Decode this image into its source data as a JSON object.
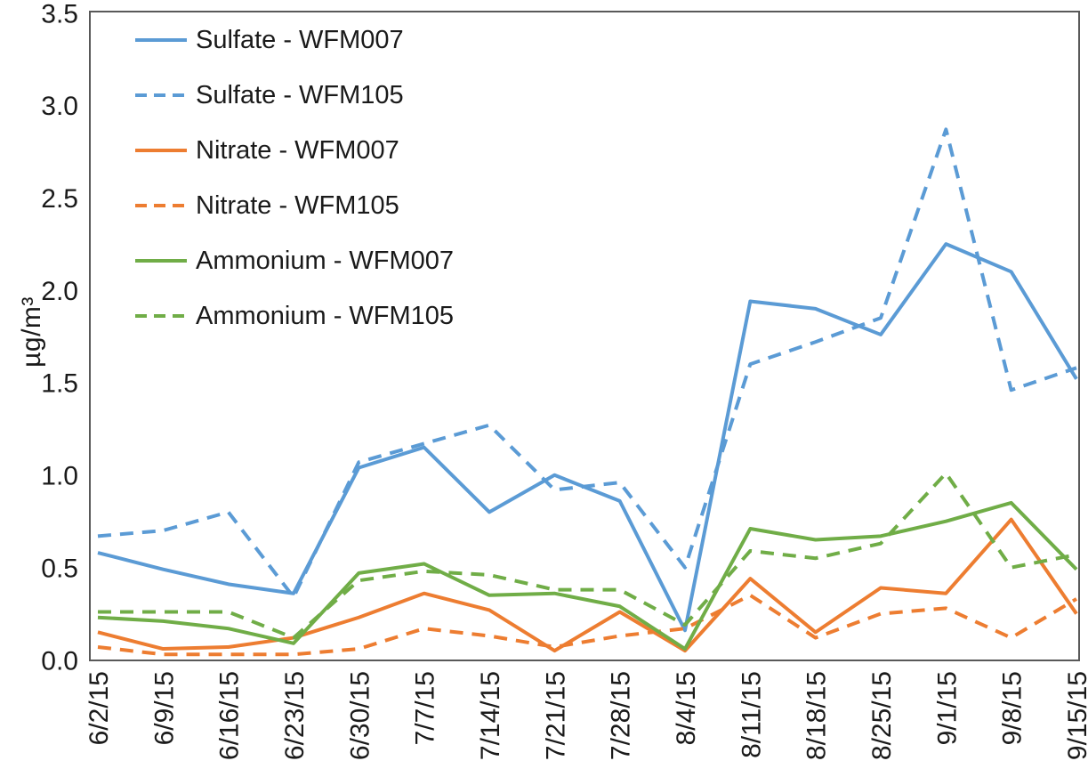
{
  "chart_data": {
    "type": "line",
    "title": "",
    "xlabel": "",
    "ylabel": "µg/m³",
    "ylim": [
      0,
      3.5
    ],
    "ytick_step": 0.5,
    "ytick_labels": [
      "0.0",
      "0.5",
      "1.0",
      "1.5",
      "2.0",
      "2.5",
      "3.0",
      "3.5"
    ],
    "grid": false,
    "legend_position": "top-left-inside",
    "x_tick_rotation_degrees": 90,
    "categories": [
      "6/2/15",
      "6/9/15",
      "6/16/15",
      "6/23/15",
      "6/30/15",
      "7/7/15",
      "7/14/15",
      "7/21/15",
      "7/28/15",
      "8/4/15",
      "8/11/15",
      "8/18/15",
      "8/25/15",
      "9/1/15",
      "9/8/15",
      "9/15/15"
    ],
    "series": [
      {
        "name": "Sulfate - WFM007",
        "color": "#5B9BD5",
        "style": "solid",
        "values": [
          0.58,
          0.49,
          0.41,
          0.36,
          1.04,
          1.15,
          0.8,
          1.0,
          0.86,
          0.16,
          1.94,
          1.9,
          1.76,
          2.25,
          2.1,
          1.52
        ]
      },
      {
        "name": "Sulfate - WFM105",
        "color": "#5B9BD5",
        "style": "dashed",
        "values": [
          0.67,
          0.7,
          0.8,
          0.34,
          1.07,
          1.17,
          1.27,
          0.92,
          0.96,
          0.5,
          1.6,
          1.72,
          1.85,
          2.87,
          1.46,
          1.58
        ]
      },
      {
        "name": "Nitrate - WFM007",
        "color": "#ED7D31",
        "style": "solid",
        "values": [
          0.15,
          0.06,
          0.07,
          0.12,
          0.23,
          0.36,
          0.27,
          0.05,
          0.26,
          0.05,
          0.44,
          0.15,
          0.39,
          0.36,
          0.76,
          0.25
        ]
      },
      {
        "name": "Nitrate - WFM105",
        "color": "#ED7D31",
        "style": "dashed",
        "values": [
          0.07,
          0.03,
          0.03,
          0.03,
          0.06,
          0.17,
          0.13,
          0.07,
          0.13,
          0.17,
          0.35,
          0.12,
          0.25,
          0.28,
          0.12,
          0.33
        ]
      },
      {
        "name": "Ammonium - WFM007",
        "color": "#70AD47",
        "style": "solid",
        "values": [
          0.23,
          0.21,
          0.17,
          0.09,
          0.47,
          0.52,
          0.35,
          0.36,
          0.29,
          0.06,
          0.71,
          0.65,
          0.67,
          0.75,
          0.85,
          0.49
        ]
      },
      {
        "name": "Ammonium - WFM105",
        "color": "#70AD47",
        "style": "dashed",
        "values": [
          0.26,
          0.26,
          0.26,
          0.12,
          0.43,
          0.48,
          0.46,
          0.38,
          0.38,
          0.19,
          0.59,
          0.55,
          0.63,
          1.01,
          0.5,
          0.57
        ]
      }
    ]
  },
  "colors": {
    "axis": "#595959",
    "tick_text": "#1a1a1a",
    "background": "#FFFFFF",
    "series_blue": "#5B9BD5",
    "series_orange": "#ED7D31",
    "series_green": "#70AD47"
  }
}
